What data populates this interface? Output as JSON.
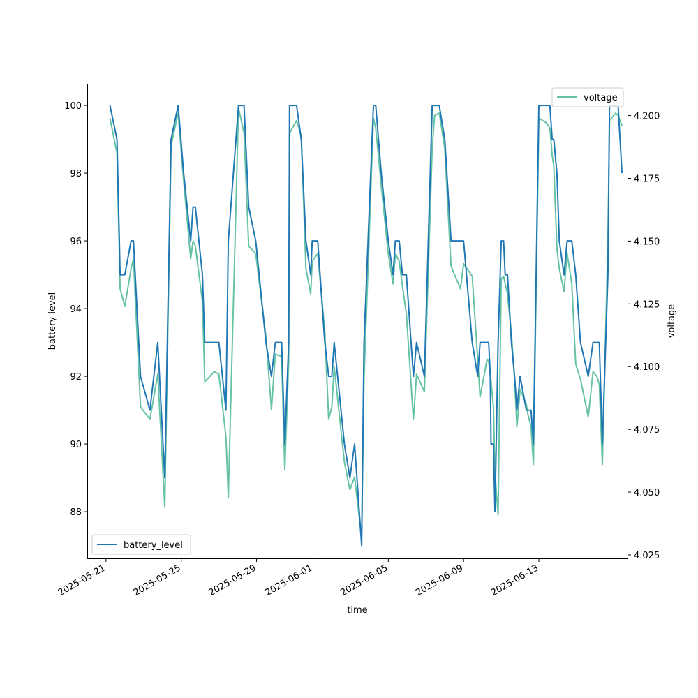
{
  "colors": {
    "battery": "#1f77b4",
    "voltage": "#66c2a5",
    "axis": "#000000",
    "background": "#ffffff"
  },
  "chart_data": {
    "type": "line",
    "title": "",
    "xlabel": "time",
    "ylabel_left": "battery level",
    "ylabel_right": "voltage",
    "grid": false,
    "xlim": [
      "2025-05-20T01:00",
      "2025-06-17T17:00"
    ],
    "ylim_left": [
      86.62,
      100.62
    ],
    "ylim_right": [
      4.0236,
      4.2124
    ],
    "x_ticks": [
      "2025-05-21",
      "2025-05-25",
      "2025-05-29",
      "2025-06-01",
      "2025-06-05",
      "2025-06-09",
      "2025-06-13"
    ],
    "y_ticks_left": [
      "88",
      "90",
      "92",
      "94",
      "96",
      "98",
      "100"
    ],
    "y_ticks_right": [
      "4.025",
      "4.050",
      "4.075",
      "4.100",
      "4.125",
      "4.150",
      "4.175",
      "4.200"
    ],
    "legend_left": {
      "label": "battery_level",
      "placement": "lower-left"
    },
    "legend_right": {
      "label": "voltage",
      "placement": "upper-right"
    },
    "series": [
      {
        "name": "battery_level",
        "axis": "left",
        "points": [
          [
            "2025-05-21T05:00",
            100
          ],
          [
            "2025-05-21T14:00",
            99
          ],
          [
            "2025-05-21T18:00",
            95
          ],
          [
            "2025-05-22T00:00",
            95
          ],
          [
            "2025-05-22T08:00",
            96
          ],
          [
            "2025-05-22T11:00",
            96
          ],
          [
            "2025-05-22T20:00",
            92
          ],
          [
            "2025-05-23T08:00",
            91
          ],
          [
            "2025-05-23T18:00",
            93
          ],
          [
            "2025-05-24T03:00",
            89
          ],
          [
            "2025-05-24T11:00",
            99
          ],
          [
            "2025-05-24T20:00",
            100
          ],
          [
            "2025-05-25T03:00",
            98
          ],
          [
            "2025-05-25T12:00",
            96
          ],
          [
            "2025-05-25T15:00",
            97
          ],
          [
            "2025-05-25T18:00",
            97
          ],
          [
            "2025-05-26T03:00",
            95
          ],
          [
            "2025-05-26T06:00",
            93
          ],
          [
            "2025-05-26T18:00",
            93
          ],
          [
            "2025-05-27T00:00",
            93
          ],
          [
            "2025-05-27T09:00",
            91
          ],
          [
            "2025-05-27T12:00",
            96
          ],
          [
            "2025-05-28T01:00",
            100
          ],
          [
            "2025-05-28T08:00",
            100
          ],
          [
            "2025-05-28T14:00",
            97
          ],
          [
            "2025-05-28T23:00",
            96
          ],
          [
            "2025-05-29T12:00",
            93
          ],
          [
            "2025-05-29T19:00",
            92
          ],
          [
            "2025-05-30T00:00",
            93
          ],
          [
            "2025-05-30T08:00",
            93
          ],
          [
            "2025-05-30T12:00",
            90
          ],
          [
            "2025-05-30T17:00",
            93
          ],
          [
            "2025-05-30T18:00",
            100
          ],
          [
            "2025-05-31T03:00",
            100
          ],
          [
            "2025-05-31T09:00",
            99
          ],
          [
            "2025-05-31T15:00",
            96
          ],
          [
            "2025-05-31T21:00",
            95
          ],
          [
            "2025-05-31T23:00",
            96
          ],
          [
            "2025-06-01T06:00",
            96
          ],
          [
            "2025-06-01T15:00",
            93
          ],
          [
            "2025-06-01T20:00",
            92
          ],
          [
            "2025-06-02T00:00",
            92
          ],
          [
            "2025-06-02T03:00",
            93
          ],
          [
            "2025-06-02T16:00",
            90
          ],
          [
            "2025-06-02T23:00",
            89
          ],
          [
            "2025-06-03T05:00",
            90
          ],
          [
            "2025-06-03T14:00",
            87
          ],
          [
            "2025-06-03T17:00",
            93
          ],
          [
            "2025-06-04T05:00",
            100
          ],
          [
            "2025-06-04T08:00",
            100
          ],
          [
            "2025-06-04T15:00",
            98
          ],
          [
            "2025-06-05T00:00",
            96
          ],
          [
            "2025-06-05T06:00",
            95
          ],
          [
            "2025-06-05T09:00",
            96
          ],
          [
            "2025-06-05T14:00",
            96
          ],
          [
            "2025-06-05T18:00",
            95
          ],
          [
            "2025-06-05T23:00",
            95
          ],
          [
            "2025-06-06T08:00",
            92
          ],
          [
            "2025-06-06T12:00",
            93
          ],
          [
            "2025-06-06T22:00",
            92
          ],
          [
            "2025-06-07T08:00",
            100
          ],
          [
            "2025-06-07T11:00",
            100
          ],
          [
            "2025-06-07T17:00",
            100
          ],
          [
            "2025-06-08T00:00",
            99
          ],
          [
            "2025-06-08T08:00",
            96
          ],
          [
            "2025-06-08T20:00",
            96
          ],
          [
            "2025-06-09T00:00",
            96
          ],
          [
            "2025-06-09T11:00",
            93
          ],
          [
            "2025-06-09T18:00",
            92
          ],
          [
            "2025-06-09T21:00",
            93
          ],
          [
            "2025-06-10T06:00",
            93
          ],
          [
            "2025-06-10T08:00",
            93
          ],
          [
            "2025-06-10T10:00",
            92
          ],
          [
            "2025-06-10T11:00",
            90
          ],
          [
            "2025-06-10T14:00",
            90
          ],
          [
            "2025-06-10T16:00",
            88
          ],
          [
            "2025-06-10T20:00",
            93
          ],
          [
            "2025-06-11T00:00",
            96
          ],
          [
            "2025-06-11T03:00",
            96
          ],
          [
            "2025-06-11T05:00",
            95
          ],
          [
            "2025-06-11T08:00",
            95
          ],
          [
            "2025-06-11T13:00",
            93
          ],
          [
            "2025-06-11T17:00",
            92
          ],
          [
            "2025-06-11T20:00",
            91
          ],
          [
            "2025-06-12T00:00",
            92
          ],
          [
            "2025-06-12T08:00",
            91
          ],
          [
            "2025-06-12T10:00",
            91
          ],
          [
            "2025-06-12T14:00",
            91
          ],
          [
            "2025-06-12T17:00",
            90
          ],
          [
            "2025-06-13T00:00",
            100
          ],
          [
            "2025-06-13T10:00",
            100
          ],
          [
            "2025-06-13T14:00",
            100
          ],
          [
            "2025-06-13T17:00",
            99
          ],
          [
            "2025-06-13T19:00",
            99
          ],
          [
            "2025-06-13T23:00",
            98
          ],
          [
            "2025-06-14T02:00",
            96
          ],
          [
            "2025-06-14T08:00",
            95
          ],
          [
            "2025-06-14T12:00",
            96
          ],
          [
            "2025-06-14T18:00",
            96
          ],
          [
            "2025-06-14T23:00",
            95
          ],
          [
            "2025-06-15T05:00",
            93
          ],
          [
            "2025-06-15T15:00",
            92
          ],
          [
            "2025-06-15T21:00",
            93
          ],
          [
            "2025-06-16T02:00",
            93
          ],
          [
            "2025-06-16T05:00",
            93
          ],
          [
            "2025-06-16T09:00",
            90
          ],
          [
            "2025-06-16T16:00",
            95
          ],
          [
            "2025-06-16T18:00",
            100
          ],
          [
            "2025-06-17T02:00",
            100
          ],
          [
            "2025-06-17T05:00",
            100
          ],
          [
            "2025-06-17T10:00",
            98
          ]
        ]
      },
      {
        "name": "voltage",
        "axis": "right",
        "points": [
          [
            "2025-05-21T05:00",
            4.199
          ],
          [
            "2025-05-21T14:00",
            4.185
          ],
          [
            "2025-05-21T18:00",
            4.131
          ],
          [
            "2025-05-22T00:00",
            4.124
          ],
          [
            "2025-05-22T08:00",
            4.139
          ],
          [
            "2025-05-22T11:00",
            4.143
          ],
          [
            "2025-05-22T20:00",
            4.084
          ],
          [
            "2025-05-23T08:00",
            4.079
          ],
          [
            "2025-05-23T18:00",
            4.097
          ],
          [
            "2025-05-24T03:00",
            4.044
          ],
          [
            "2025-05-24T11:00",
            4.188
          ],
          [
            "2025-05-24T20:00",
            4.201
          ],
          [
            "2025-05-25T03:00",
            4.174
          ],
          [
            "2025-05-25T12:00",
            4.143
          ],
          [
            "2025-05-25T15:00",
            4.15
          ],
          [
            "2025-05-25T18:00",
            4.148
          ],
          [
            "2025-05-26T03:00",
            4.126
          ],
          [
            "2025-05-26T06:00",
            4.094
          ],
          [
            "2025-05-26T18:00",
            4.098
          ],
          [
            "2025-05-27T00:00",
            4.097
          ],
          [
            "2025-05-27T09:00",
            4.072
          ],
          [
            "2025-05-27T12:00",
            4.048
          ],
          [
            "2025-05-28T01:00",
            4.203
          ],
          [
            "2025-05-28T08:00",
            4.193
          ],
          [
            "2025-05-28T14:00",
            4.148
          ],
          [
            "2025-05-28T23:00",
            4.145
          ],
          [
            "2025-05-29T12:00",
            4.112
          ],
          [
            "2025-05-29T19:00",
            4.083
          ],
          [
            "2025-05-30T00:00",
            4.105
          ],
          [
            "2025-05-30T08:00",
            4.104
          ],
          [
            "2025-05-30T12:00",
            4.059
          ],
          [
            "2025-05-30T17:00",
            4.102
          ],
          [
            "2025-05-30T18:00",
            4.193
          ],
          [
            "2025-05-31T03:00",
            4.198
          ],
          [
            "2025-05-31T09:00",
            4.192
          ],
          [
            "2025-05-31T15:00",
            4.139
          ],
          [
            "2025-05-31T21:00",
            4.129
          ],
          [
            "2025-05-31T23:00",
            4.142
          ],
          [
            "2025-06-01T06:00",
            4.145
          ],
          [
            "2025-06-01T15:00",
            4.114
          ],
          [
            "2025-06-01T20:00",
            4.079
          ],
          [
            "2025-06-02T00:00",
            4.084
          ],
          [
            "2025-06-02T03:00",
            4.1
          ],
          [
            "2025-06-02T16:00",
            4.062
          ],
          [
            "2025-06-02T23:00",
            4.051
          ],
          [
            "2025-06-03T05:00",
            4.056
          ],
          [
            "2025-06-03T14:00",
            4.032
          ],
          [
            "2025-06-03T17:00",
            4.095
          ],
          [
            "2025-06-04T05:00",
            4.199
          ],
          [
            "2025-06-04T08:00",
            4.195
          ],
          [
            "2025-06-04T15:00",
            4.172
          ],
          [
            "2025-06-05T00:00",
            4.145
          ],
          [
            "2025-06-05T06:00",
            4.133
          ],
          [
            "2025-06-05T09:00",
            4.145
          ],
          [
            "2025-06-05T14:00",
            4.142
          ],
          [
            "2025-06-05T18:00",
            4.132
          ],
          [
            "2025-06-05T23:00",
            4.121
          ],
          [
            "2025-06-06T08:00",
            4.079
          ],
          [
            "2025-06-06T12:00",
            4.097
          ],
          [
            "2025-06-06T22:00",
            4.09
          ],
          [
            "2025-06-07T08:00",
            4.187
          ],
          [
            "2025-06-07T11:00",
            4.2
          ],
          [
            "2025-06-07T17:00",
            4.201
          ],
          [
            "2025-06-08T00:00",
            4.187
          ],
          [
            "2025-06-08T08:00",
            4.14
          ],
          [
            "2025-06-08T20:00",
            4.131
          ],
          [
            "2025-06-09T00:00",
            4.141
          ],
          [
            "2025-06-09T11:00",
            4.136
          ],
          [
            "2025-06-09T18:00",
            4.103
          ],
          [
            "2025-06-09T21:00",
            4.088
          ],
          [
            "2025-06-10T06:00",
            4.103
          ],
          [
            "2025-06-10T08:00",
            4.102
          ],
          [
            "2025-06-10T10:00",
            4.097
          ],
          [
            "2025-06-10T11:00",
            4.094
          ],
          [
            "2025-06-10T14:00",
            4.084
          ],
          [
            "2025-06-10T16:00",
            4.058
          ],
          [
            "2025-06-10T20:00",
            4.041
          ],
          [
            "2025-06-11T00:00",
            4.135
          ],
          [
            "2025-06-11T03:00",
            4.136
          ],
          [
            "2025-06-11T05:00",
            4.133
          ],
          [
            "2025-06-11T08:00",
            4.129
          ],
          [
            "2025-06-11T13:00",
            4.113
          ],
          [
            "2025-06-11T17:00",
            4.095
          ],
          [
            "2025-06-11T20:00",
            4.076
          ],
          [
            "2025-06-12T00:00",
            4.091
          ],
          [
            "2025-06-12T08:00",
            4.085
          ],
          [
            "2025-06-12T10:00",
            4.081
          ],
          [
            "2025-06-12T14:00",
            4.076
          ],
          [
            "2025-06-12T17:00",
            4.061
          ],
          [
            "2025-06-13T00:00",
            4.199
          ],
          [
            "2025-06-13T10:00",
            4.197
          ],
          [
            "2025-06-13T14:00",
            4.195
          ],
          [
            "2025-06-13T17:00",
            4.184
          ],
          [
            "2025-06-13T19:00",
            4.18
          ],
          [
            "2025-06-13T23:00",
            4.147
          ],
          [
            "2025-06-14T02:00",
            4.139
          ],
          [
            "2025-06-14T08:00",
            4.13
          ],
          [
            "2025-06-14T12:00",
            4.145
          ],
          [
            "2025-06-14T18:00",
            4.133
          ],
          [
            "2025-06-14T23:00",
            4.101
          ],
          [
            "2025-06-15T05:00",
            4.095
          ],
          [
            "2025-06-15T15:00",
            4.08
          ],
          [
            "2025-06-15T21:00",
            4.098
          ],
          [
            "2025-06-16T02:00",
            4.096
          ],
          [
            "2025-06-16T05:00",
            4.093
          ],
          [
            "2025-06-16T09:00",
            4.061
          ],
          [
            "2025-06-16T16:00",
            4.15
          ],
          [
            "2025-06-16T18:00",
            4.198
          ],
          [
            "2025-06-17T02:00",
            4.201
          ],
          [
            "2025-06-17T05:00",
            4.2
          ],
          [
            "2025-06-17T10:00",
            4.196
          ]
        ]
      }
    ]
  }
}
